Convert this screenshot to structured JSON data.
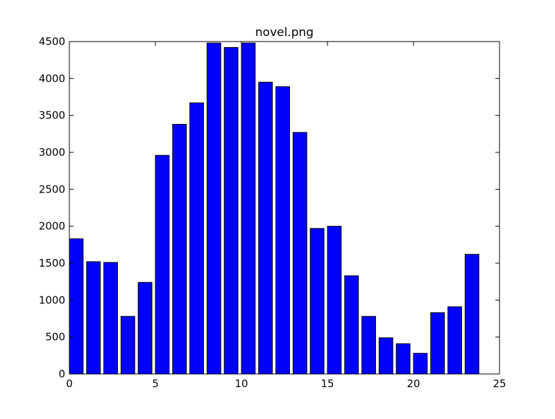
{
  "chart_data": {
    "type": "bar",
    "title": "novel.png",
    "xlabel": "",
    "ylabel": "",
    "x": [
      0,
      1,
      2,
      3,
      4,
      5,
      6,
      7,
      8,
      9,
      10,
      11,
      12,
      13,
      14,
      15,
      16,
      17,
      18,
      19,
      20,
      21,
      22,
      23
    ],
    "values": [
      1830,
      1520,
      1510,
      780,
      1240,
      2960,
      3380,
      3670,
      4480,
      4420,
      4480,
      3950,
      3890,
      3270,
      1970,
      2000,
      1330,
      780,
      490,
      410,
      280,
      830,
      910,
      1620
    ],
    "bar_width_units": 0.8,
    "xlim": [
      0,
      25
    ],
    "ylim": [
      0,
      4500
    ],
    "xticks": [
      0,
      5,
      10,
      15,
      20,
      25
    ],
    "yticks": [
      0,
      500,
      1000,
      1500,
      2000,
      2500,
      3000,
      3500,
      4000,
      4500
    ],
    "xtick_labels": [
      "0",
      "5",
      "10",
      "15",
      "20",
      "25"
    ],
    "ytick_labels": [
      "0",
      "500",
      "1000",
      "1500",
      "2000",
      "2500",
      "3000",
      "3500",
      "4000",
      "4500"
    ],
    "grid": false,
    "legend": "none",
    "bar_color": "#0000ff",
    "edge_color": "#000000"
  }
}
